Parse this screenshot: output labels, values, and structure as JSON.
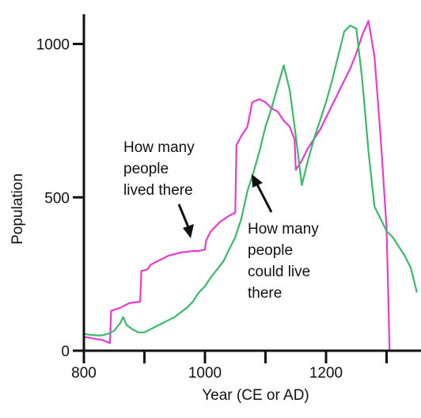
{
  "chart_data": {
    "type": "line",
    "title": "",
    "xlabel": "Year (CE or AD)",
    "ylabel": "Population",
    "xlim": [
      800,
      1350
    ],
    "ylim": [
      0,
      1090
    ],
    "x_ticks": [
      800,
      900,
      1000,
      1100,
      1200,
      1300
    ],
    "x_tick_labels": [
      "800",
      "",
      "1000",
      "",
      "1200",
      ""
    ],
    "y_ticks": [
      0,
      500,
      1000
    ],
    "y_tick_labels": [
      "0",
      "500",
      "1000"
    ],
    "grid": false,
    "series": [
      {
        "label_key": "lived",
        "color": "#e83ccf",
        "points": [
          [
            800,
            45
          ],
          [
            810,
            42
          ],
          [
            820,
            38
          ],
          [
            830,
            35
          ],
          [
            843,
            25
          ],
          [
            845,
            130
          ],
          [
            860,
            140
          ],
          [
            875,
            155
          ],
          [
            893,
            160
          ],
          [
            895,
            260
          ],
          [
            905,
            265
          ],
          [
            910,
            280
          ],
          [
            920,
            290
          ],
          [
            940,
            310
          ],
          [
            960,
            320
          ],
          [
            980,
            325
          ],
          [
            990,
            325
          ],
          [
            1000,
            330
          ],
          [
            1002,
            360
          ],
          [
            1010,
            390
          ],
          [
            1025,
            420
          ],
          [
            1040,
            440
          ],
          [
            1050,
            450
          ],
          [
            1052,
            670
          ],
          [
            1060,
            700
          ],
          [
            1070,
            730
          ],
          [
            1078,
            810
          ],
          [
            1090,
            820
          ],
          [
            1100,
            810
          ],
          [
            1110,
            790
          ],
          [
            1120,
            780
          ],
          [
            1130,
            750
          ],
          [
            1140,
            730
          ],
          [
            1148,
            690
          ],
          [
            1150,
            590
          ],
          [
            1160,
            620
          ],
          [
            1170,
            660
          ],
          [
            1180,
            690
          ],
          [
            1190,
            720
          ],
          [
            1200,
            760
          ],
          [
            1210,
            800
          ],
          [
            1220,
            840
          ],
          [
            1230,
            880
          ],
          [
            1240,
            920
          ],
          [
            1250,
            970
          ],
          [
            1260,
            1030
          ],
          [
            1270,
            1075
          ],
          [
            1280,
            960
          ],
          [
            1290,
            700
          ],
          [
            1300,
            400
          ],
          [
            1305,
            0
          ]
        ]
      },
      {
        "label_key": "could_live",
        "color": "#3db86b",
        "points": [
          [
            800,
            55
          ],
          [
            810,
            52
          ],
          [
            820,
            50
          ],
          [
            830,
            50
          ],
          [
            840,
            55
          ],
          [
            850,
            65
          ],
          [
            860,
            90
          ],
          [
            865,
            110
          ],
          [
            870,
            85
          ],
          [
            880,
            70
          ],
          [
            890,
            60
          ],
          [
            900,
            60
          ],
          [
            910,
            70
          ],
          [
            920,
            80
          ],
          [
            930,
            90
          ],
          [
            940,
            100
          ],
          [
            950,
            110
          ],
          [
            960,
            125
          ],
          [
            970,
            140
          ],
          [
            980,
            160
          ],
          [
            990,
            190
          ],
          [
            1000,
            210
          ],
          [
            1010,
            240
          ],
          [
            1020,
            265
          ],
          [
            1030,
            290
          ],
          [
            1040,
            330
          ],
          [
            1050,
            370
          ],
          [
            1060,
            430
          ],
          [
            1070,
            520
          ],
          [
            1080,
            580
          ],
          [
            1090,
            650
          ],
          [
            1100,
            730
          ],
          [
            1110,
            790
          ],
          [
            1120,
            860
          ],
          [
            1130,
            930
          ],
          [
            1140,
            850
          ],
          [
            1150,
            700
          ],
          [
            1160,
            540
          ],
          [
            1170,
            620
          ],
          [
            1180,
            690
          ],
          [
            1190,
            750
          ],
          [
            1200,
            810
          ],
          [
            1210,
            880
          ],
          [
            1220,
            960
          ],
          [
            1230,
            1040
          ],
          [
            1240,
            1060
          ],
          [
            1250,
            1050
          ],
          [
            1260,
            880
          ],
          [
            1270,
            650
          ],
          [
            1280,
            470
          ],
          [
            1290,
            430
          ],
          [
            1300,
            390
          ],
          [
            1310,
            370
          ],
          [
            1320,
            340
          ],
          [
            1330,
            310
          ],
          [
            1340,
            270
          ],
          [
            1350,
            190
          ]
        ]
      }
    ],
    "annotations": {
      "lived": [
        "How many",
        "people",
        "lived there"
      ],
      "could_live": [
        "How many",
        "people",
        "could live",
        "there"
      ]
    }
  }
}
